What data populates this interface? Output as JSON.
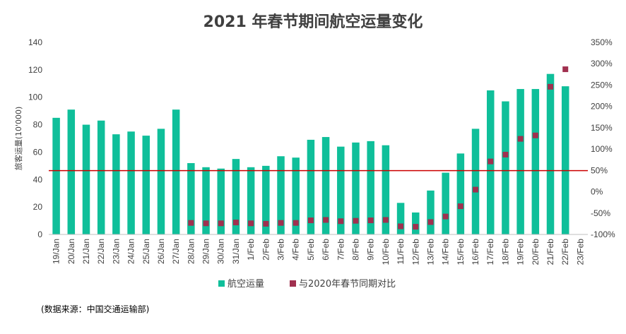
{
  "chart_data": {
    "type": "bar",
    "title": "2021 年春节期间航空运量变化",
    "ylabel": "旅客运量(10'000)",
    "y2label": "",
    "ylim": [
      0,
      140
    ],
    "yticks": [
      0,
      20,
      40,
      60,
      80,
      100,
      120,
      140
    ],
    "y2lim": [
      -100,
      350
    ],
    "y2ticks": [
      "-100%",
      "-50%",
      "0%",
      "50%",
      "100%",
      "150%",
      "200%",
      "250%",
      "300%",
      "350%"
    ],
    "y2tick_values": [
      -100,
      -50,
      0,
      50,
      100,
      150,
      200,
      250,
      300,
      350
    ],
    "categories": [
      "19/Jan",
      "20/Jan",
      "21/Jan",
      "22/Jan",
      "23/Jan",
      "24/Jan",
      "25/Jan",
      "26/Jan",
      "27/Jan",
      "28/Jan",
      "29/Jan",
      "30/Jan",
      "31/Jan",
      "1/Feb",
      "2/Feb",
      "3/Feb",
      "4/Feb",
      "5/Feb",
      "6/Feb",
      "7/Feb",
      "8/Feb",
      "9/Feb",
      "10/Feb",
      "11/Feb",
      "12/Feb",
      "13/Feb",
      "14/Feb",
      "15/Feb",
      "16/Feb",
      "17/Feb",
      "18/Feb",
      "19/Feb",
      "20/Feb",
      "21/Feb",
      "22/Feb",
      "23/Feb"
    ],
    "series": [
      {
        "name": "航空运量",
        "axis": "left",
        "kind": "bar",
        "color": "#0fbf9a",
        "values": [
          85,
          91,
          80,
          83,
          73,
          75,
          72,
          77,
          91,
          52,
          49,
          48,
          55,
          49,
          50,
          57,
          56,
          69,
          71,
          64,
          67,
          68,
          65,
          23,
          16,
          32,
          45,
          59,
          77,
          105,
          97,
          106,
          106,
          117,
          108,
          null
        ]
      },
      {
        "name": "与2020年春节同期对比",
        "axis": "right",
        "kind": "marker",
        "color": "#a0304f",
        "values": [
          null,
          null,
          null,
          null,
          null,
          null,
          null,
          null,
          null,
          -73,
          -74,
          -74,
          -72,
          -74,
          -75,
          -73,
          -73,
          -67,
          -66,
          -69,
          -68,
          -67,
          -66,
          -81,
          -82,
          -71,
          -58,
          -34,
          5,
          71,
          87,
          124,
          132,
          246,
          287,
          null
        ]
      }
    ],
    "reference_line": {
      "axis": "left",
      "value": 46.5,
      "color": "#cc0000"
    },
    "legend_position": "bottom",
    "grid": false
  },
  "source_note": "(数据来源：中国交通运输部)"
}
